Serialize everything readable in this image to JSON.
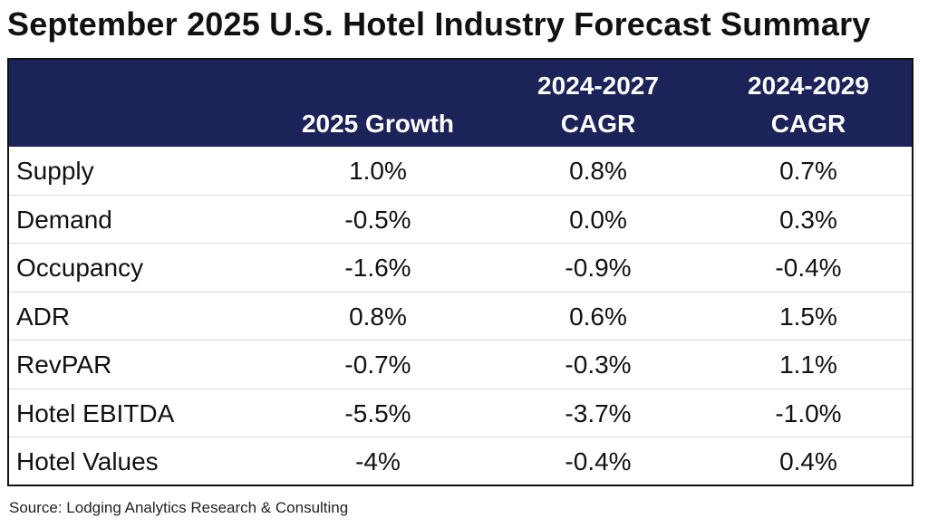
{
  "title": "September 2025 U.S. Hotel Industry Forecast Summary",
  "header": {
    "col1": [
      "2025 Growth"
    ],
    "col2": [
      "2024-2027",
      "CAGR"
    ],
    "col3": [
      "2024-2029",
      "CAGR"
    ]
  },
  "rows": [
    {
      "label": "Supply",
      "growth_2025": "1.0%",
      "cagr_2024_2027": "0.8%",
      "cagr_2024_2029": "0.7%"
    },
    {
      "label": "Demand",
      "growth_2025": "-0.5%",
      "cagr_2024_2027": "0.0%",
      "cagr_2024_2029": "0.3%"
    },
    {
      "label": "Occupancy",
      "growth_2025": "-1.6%",
      "cagr_2024_2027": "-0.9%",
      "cagr_2024_2029": "-0.4%"
    },
    {
      "label": "ADR",
      "growth_2025": "0.8%",
      "cagr_2024_2027": "0.6%",
      "cagr_2024_2029": "1.5%"
    },
    {
      "label": "RevPAR",
      "growth_2025": "-0.7%",
      "cagr_2024_2027": "-0.3%",
      "cagr_2024_2029": "1.1%"
    },
    {
      "label": "Hotel EBITDA",
      "growth_2025": "-5.5%",
      "cagr_2024_2027": "-3.7%",
      "cagr_2024_2029": "-1.0%"
    },
    {
      "label": "Hotel Values",
      "growth_2025": "-4%",
      "cagr_2024_2027": "-0.4%",
      "cagr_2024_2029": "0.4%"
    }
  ],
  "source": "Source: Lodging Analytics Research & Consulting",
  "colors": {
    "header_bg": "#1c2359",
    "header_text": "#ffffff",
    "text": "#111111"
  }
}
